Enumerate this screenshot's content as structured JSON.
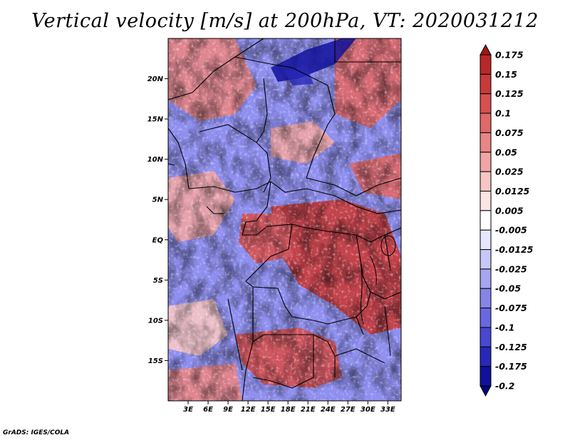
{
  "title": "Vertical velocity [m/s] at 200hPa, VT: 2020031212",
  "credit": "GrADS: IGES/COLA",
  "map": {
    "lon_range": [
      0,
      35
    ],
    "lat_range": [
      -20,
      25
    ],
    "lat_ticks": [
      "20N",
      "15N",
      "10N",
      "5N",
      "EQ",
      "5S",
      "10S",
      "15S"
    ],
    "lon_ticks": [
      "3E",
      "6E",
      "9E",
      "12E",
      "15E",
      "18E",
      "21E",
      "24E",
      "27E",
      "30E",
      "33E"
    ]
  },
  "colorbar": {
    "levels": [
      "0.175",
      "0.15",
      "0.125",
      "0.1",
      "0.075",
      "0.05",
      "0.025",
      "0.0125",
      "0.005",
      "-0.005",
      "-0.0125",
      "-0.025",
      "-0.05",
      "-0.075",
      "-0.1",
      "-0.125",
      "-0.175",
      "-0.2"
    ],
    "colors": [
      "#a01515",
      "#b82828",
      "#c83a3a",
      "#d65050",
      "#e06868",
      "#e88585",
      "#f0a5a5",
      "#f7c5c5",
      "#fde4e4",
      "#ffffff",
      "#e6e6ff",
      "#c8c8f8",
      "#a5a5f0",
      "#8585e8",
      "#6868e0",
      "#4848d0",
      "#2828b8",
      "#10109a",
      "#05057a"
    ]
  }
}
